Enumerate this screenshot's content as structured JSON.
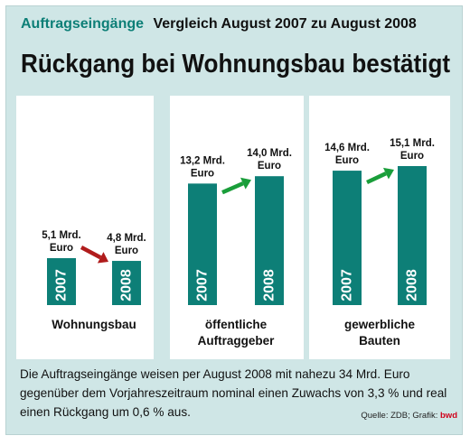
{
  "header": {
    "topic": "Auftragseingänge",
    "subtitle": "Vergleich August 2007 zu August 2008",
    "headline": "Rückgang bei Wohnungsbau bestätigt"
  },
  "footnote": "Die Auftragseingänge weisen per August 2008 mit nahezu 34 Mrd. Euro gegenüber dem Vorjahreszeitraum nominal einen Zuwachs von 3,3 % und real einen Rückgang um 0,6 % aus.",
  "source": {
    "text": "Quelle: ZDB; Grafik:",
    "brand": "bwd"
  },
  "colors": {
    "bar": "#0d7f77",
    "background": "#cfe6e6",
    "arrow_up": "#1a9e3a",
    "arrow_down": "#b01c1c",
    "brand": "#d0021b"
  },
  "chart_data": {
    "type": "bar",
    "title": "Rückgang bei Wohnungsbau bestätigt",
    "subtitle": "Vergleich August 2007 zu August 2008",
    "unit": "Mrd. Euro",
    "series_years": [
      "2007",
      "2008"
    ],
    "groups": [
      {
        "label": [
          "Wohnungsbau"
        ],
        "values": [
          5.1,
          4.8
        ],
        "value_labels": [
          [
            "5,1 Mrd.",
            "Euro"
          ],
          [
            "4,8 Mrd.",
            "Euro"
          ]
        ],
        "trend": "down",
        "arrow_icon": "arrow-down-right-icon"
      },
      {
        "label": [
          "öffentliche",
          "Auftraggeber"
        ],
        "values": [
          13.2,
          14.0
        ],
        "value_labels": [
          [
            "13,2 Mrd.",
            "Euro"
          ],
          [
            "14,0 Mrd.",
            "Euro"
          ]
        ],
        "trend": "up",
        "arrow_icon": "arrow-up-right-icon"
      },
      {
        "label": [
          "gewerbliche",
          "Bauten"
        ],
        "values": [
          14.6,
          15.1
        ],
        "value_labels": [
          [
            "14,6 Mrd.",
            "Euro"
          ],
          [
            "15,1 Mrd.",
            "Euro"
          ]
        ],
        "trend": "up",
        "arrow_icon": "arrow-up-right-icon"
      }
    ]
  }
}
